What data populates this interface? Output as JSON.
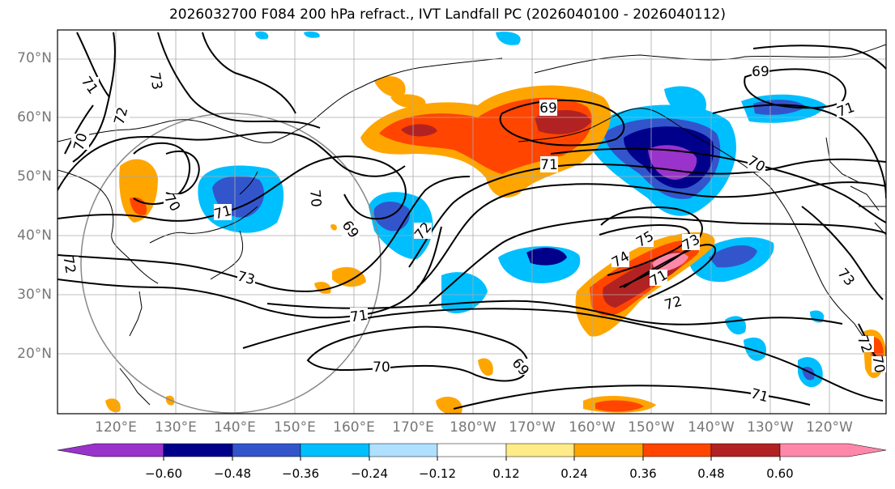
{
  "title": "2026032700 F084 200 hPa refract., IVT Landfall PC (2026040100 - 2026040112)",
  "lat_labels": [
    "70°N",
    "60°N",
    "50°N",
    "40°N",
    "30°N",
    "20°N"
  ],
  "lon_labels": [
    "120°E",
    "130°E",
    "140°E",
    "150°E",
    "160°E",
    "170°E",
    "180°W",
    "170°W",
    "160°W",
    "150°W",
    "140°W",
    "130°W",
    "120°W"
  ],
  "colorbar": {
    "ticks": [
      "−0.60",
      "−0.48",
      "−0.36",
      "−0.24",
      "−0.12",
      "0.12",
      "0.24",
      "0.36",
      "0.48",
      "0.60"
    ],
    "colors": [
      "#9933cc",
      "#00008b",
      "#3355cc",
      "#00bfff",
      "#b0e0ff",
      "#ffffff",
      "#ffeb88",
      "#ffa500",
      "#ff4500",
      "#b22222",
      "#ff88aa"
    ]
  },
  "contour_labels": [
    "73",
    "71",
    "72",
    "70",
    "70",
    "71",
    "72",
    "73",
    "70",
    "69",
    "72",
    "73",
    "71",
    "70",
    "69",
    "69",
    "69",
    "71",
    "70",
    "75",
    "74",
    "73",
    "71",
    "72",
    "71",
    "72",
    "71",
    "70"
  ]
}
